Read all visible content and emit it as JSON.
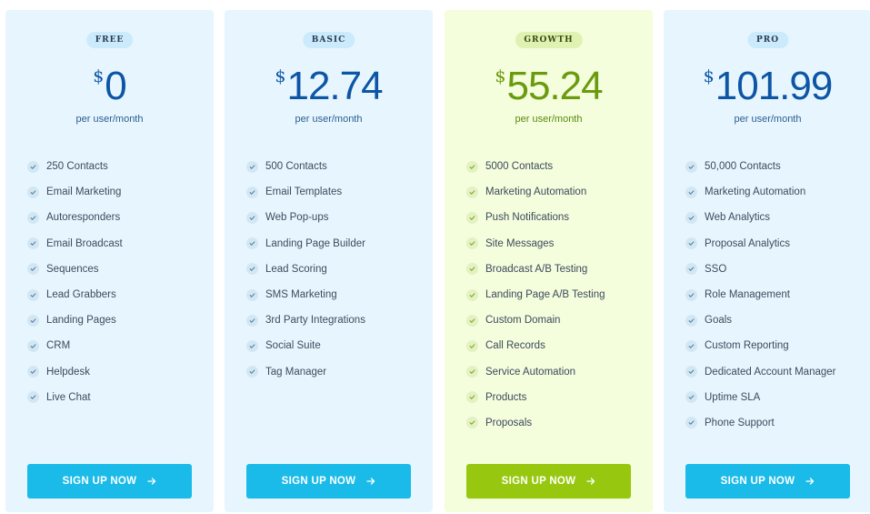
{
  "plans": [
    {
      "badge": "FREE",
      "currency": "$",
      "price": "0",
      "period": "per user/month",
      "features": [
        "250 Contacts",
        "Email Marketing",
        "Autoresponders",
        "Email Broadcast",
        "Sequences",
        "Lead Grabbers",
        "Landing Pages",
        "CRM",
        "Helpdesk",
        "Live Chat"
      ],
      "cta": "SIGN UP NOW"
    },
    {
      "badge": "BASIC",
      "currency": "$",
      "price": "12.74",
      "period": "per user/month",
      "features": [
        "500 Contacts",
        "Email Templates",
        "Web Pop-ups",
        "Landing Page Builder",
        "Lead Scoring",
        "SMS Marketing",
        "3rd Party Integrations",
        "Social Suite",
        "Tag Manager"
      ],
      "cta": "SIGN UP NOW"
    },
    {
      "badge": "GROWTH",
      "currency": "$",
      "price": "55.24",
      "period": "per user/month",
      "features": [
        "5000 Contacts",
        "Marketing Automation",
        "Push Notifications",
        "Site Messages",
        "Broadcast A/B Testing",
        "Landing Page A/B Testing",
        "Custom Domain",
        "Call Records",
        "Service Automation",
        "Products",
        "Proposals"
      ],
      "cta": "SIGN UP NOW"
    },
    {
      "badge": "PRO",
      "currency": "$",
      "price": "101.99",
      "period": "per user/month",
      "features": [
        "50,000 Contacts",
        "Marketing Automation",
        "Web Analytics",
        "Proposal Analytics",
        "SSO",
        "Role Management",
        "Goals",
        "Custom Reporting",
        "Dedicated Account Manager",
        "Uptime SLA",
        "Phone Support"
      ],
      "cta": "SIGN UP NOW"
    }
  ],
  "icons": {
    "check": "check-icon",
    "arrow": "arrow-right-icon"
  },
  "colors": {
    "card_bg": "#e7f6fe",
    "featured_bg": "#f4fddc",
    "price_blue": "#0d55a5",
    "price_green": "#6a9a0d",
    "button_blue": "#1bbbe9",
    "button_green": "#97c80f"
  }
}
